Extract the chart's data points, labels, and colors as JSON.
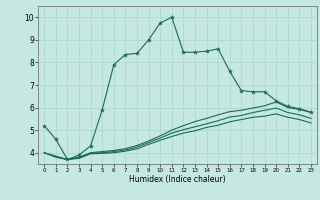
{
  "xlabel": "Humidex (Indice chaleur)",
  "xlim": [
    -0.5,
    23.5
  ],
  "ylim": [
    3.5,
    10.5
  ],
  "xticks": [
    0,
    1,
    2,
    3,
    4,
    5,
    6,
    7,
    8,
    9,
    10,
    11,
    12,
    13,
    14,
    15,
    16,
    17,
    18,
    19,
    20,
    21,
    22,
    23
  ],
  "yticks": [
    4,
    5,
    6,
    7,
    8,
    9,
    10
  ],
  "bg_color": "#c5e8e0",
  "grid_color": "#aad4cc",
  "line_color": "#1a6b5a",
  "line1_x": [
    0,
    1,
    2,
    3,
    4,
    5,
    6,
    7,
    8,
    9,
    10,
    11,
    12,
    13,
    14,
    15,
    16,
    17,
    18,
    19,
    20,
    21,
    22,
    23
  ],
  "line1_y": [
    5.2,
    4.6,
    3.7,
    3.9,
    4.3,
    5.9,
    7.9,
    8.35,
    8.4,
    9.0,
    9.75,
    10.0,
    8.45,
    8.45,
    8.5,
    8.6,
    7.6,
    6.75,
    6.7,
    6.7,
    6.3,
    6.05,
    5.95,
    5.8
  ],
  "line2_x": [
    0,
    1,
    2,
    3,
    4,
    5,
    6,
    7,
    8,
    9,
    10,
    11,
    12,
    13,
    14,
    15,
    16,
    17,
    18,
    19,
    20,
    21,
    22,
    23
  ],
  "line2_y": [
    4.0,
    3.85,
    3.7,
    3.8,
    4.0,
    4.05,
    4.1,
    4.18,
    4.32,
    4.52,
    4.75,
    5.0,
    5.2,
    5.38,
    5.52,
    5.68,
    5.82,
    5.88,
    5.98,
    6.08,
    6.25,
    6.0,
    5.92,
    5.78
  ],
  "line3_x": [
    0,
    1,
    2,
    3,
    4,
    5,
    6,
    7,
    8,
    9,
    10,
    11,
    12,
    13,
    14,
    15,
    16,
    17,
    18,
    19,
    20,
    21,
    22,
    23
  ],
  "line3_y": [
    4.0,
    3.82,
    3.7,
    3.78,
    3.98,
    4.0,
    4.05,
    4.12,
    4.25,
    4.45,
    4.65,
    4.87,
    5.02,
    5.15,
    5.28,
    5.42,
    5.58,
    5.65,
    5.78,
    5.88,
    5.98,
    5.78,
    5.68,
    5.52
  ],
  "line4_x": [
    0,
    1,
    2,
    3,
    4,
    5,
    6,
    7,
    8,
    9,
    10,
    11,
    12,
    13,
    14,
    15,
    16,
    17,
    18,
    19,
    20,
    21,
    22,
    23
  ],
  "line4_y": [
    4.0,
    3.8,
    3.7,
    3.75,
    3.95,
    3.97,
    4.0,
    4.07,
    4.17,
    4.37,
    4.55,
    4.72,
    4.87,
    4.97,
    5.12,
    5.22,
    5.37,
    5.47,
    5.57,
    5.62,
    5.72,
    5.57,
    5.47,
    5.32
  ]
}
